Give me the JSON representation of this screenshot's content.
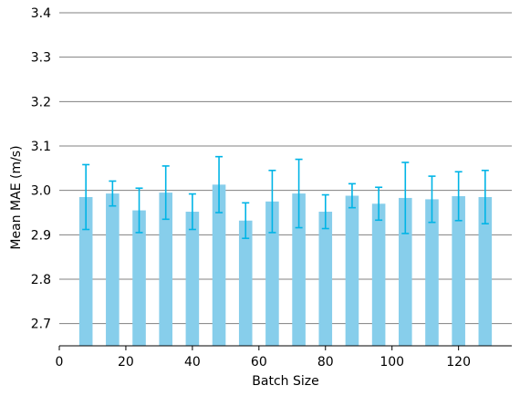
{
  "chart_data": {
    "type": "bar",
    "xlabel": "Batch Size",
    "ylabel": "Mean MAE (m/s)",
    "xlim": [
      0,
      136
    ],
    "ylim": [
      2.65,
      3.4
    ],
    "xticks": [
      0,
      20,
      40,
      60,
      80,
      100,
      120
    ],
    "yticks": [
      2.7,
      2.8,
      2.9,
      3.0,
      3.1,
      3.2,
      3.3,
      3.4
    ],
    "grid": "horizontal",
    "bar_width": 4,
    "bar_color": "#87CEEB",
    "error_color": "#00B4E6",
    "grid_color": "#808080",
    "x": [
      8,
      16,
      24,
      32,
      40,
      48,
      56,
      64,
      72,
      80,
      88,
      96,
      104,
      112,
      120,
      128
    ],
    "values": [
      2.985,
      2.993,
      2.955,
      2.995,
      2.952,
      3.013,
      2.932,
      2.975,
      2.993,
      2.952,
      2.988,
      2.97,
      2.983,
      2.98,
      2.987,
      2.985
    ],
    "errors": [
      0.073,
      0.028,
      0.05,
      0.06,
      0.04,
      0.063,
      0.04,
      0.07,
      0.077,
      0.038,
      0.027,
      0.037,
      0.08,
      0.052,
      0.055,
      0.06
    ]
  }
}
